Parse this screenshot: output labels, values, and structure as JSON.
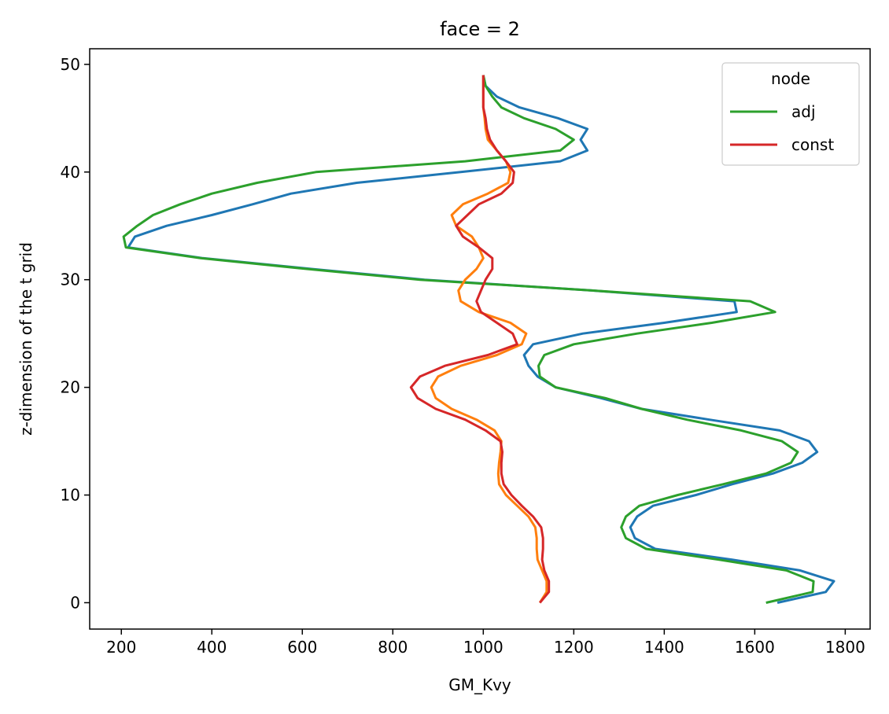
{
  "chart_data": {
    "type": "line",
    "title": "face = 2",
    "xlabel": "GM_Kvy",
    "ylabel": "z-dimension of the t grid",
    "xlim": [
      130,
      1855
    ],
    "ylim": [
      -2.45,
      51.45
    ],
    "xticks": [
      200,
      400,
      600,
      800,
      1000,
      1200,
      1400,
      1600,
      1800
    ],
    "yticks": [
      0,
      10,
      20,
      30,
      40,
      50
    ],
    "grid": false,
    "legend": {
      "title": "node",
      "placement": "top-right",
      "entries": [
        {
          "label": "adj",
          "color": "#2ca02c"
        },
        {
          "label": "const",
          "color": "#d62728"
        }
      ]
    },
    "series": [
      {
        "color": "#1f77b4",
        "y": [
          0,
          1,
          2,
          3,
          4,
          5,
          6,
          7,
          8,
          9,
          10,
          11,
          12,
          13,
          14,
          15,
          16,
          17,
          18,
          19,
          20,
          21,
          22,
          23,
          24,
          25,
          26,
          27,
          28,
          29,
          30,
          31,
          32,
          33,
          34,
          35,
          36,
          37,
          38,
          39,
          40,
          41,
          42,
          43,
          44,
          45,
          46,
          47,
          48,
          49
        ],
        "x": [
          1650,
          1757,
          1775,
          1700,
          1550,
          1380,
          1335,
          1325,
          1340,
          1375,
          1470,
          1550,
          1640,
          1705,
          1738,
          1720,
          1655,
          1500,
          1350,
          1260,
          1160,
          1120,
          1100,
          1090,
          1110,
          1220,
          1400,
          1560,
          1555,
          1240,
          870,
          620,
          380,
          215,
          230,
          300,
          400,
          490,
          575,
          720,
          950,
          1170,
          1230,
          1215,
          1230,
          1165,
          1080,
          1030,
          1005,
          1000
        ]
      },
      {
        "color": "#2ca02c",
        "y": [
          0,
          1,
          2,
          3,
          4,
          5,
          6,
          7,
          8,
          9,
          10,
          11,
          12,
          13,
          14,
          15,
          16,
          17,
          18,
          19,
          20,
          21,
          22,
          23,
          24,
          25,
          26,
          27,
          28,
          29,
          30,
          31,
          32,
          33,
          34,
          35,
          36,
          37,
          38,
          39,
          40,
          41,
          42,
          43,
          44,
          45,
          46,
          47,
          48,
          49
        ],
        "x": [
          1625,
          1728,
          1730,
          1670,
          1520,
          1360,
          1315,
          1305,
          1315,
          1345,
          1430,
          1530,
          1625,
          1680,
          1695,
          1660,
          1570,
          1450,
          1350,
          1270,
          1160,
          1125,
          1122,
          1135,
          1200,
          1340,
          1505,
          1645,
          1590,
          1240,
          860,
          610,
          375,
          210,
          205,
          235,
          270,
          330,
          400,
          500,
          630,
          960,
          1170,
          1200,
          1160,
          1090,
          1040,
          1020,
          1005,
          1000
        ]
      },
      {
        "color": "#ff7f0e",
        "y": [
          0,
          1,
          2,
          3,
          4,
          5,
          6,
          7,
          8,
          9,
          10,
          11,
          12,
          13,
          14,
          15,
          16,
          17,
          18,
          19,
          20,
          21,
          22,
          23,
          24,
          25,
          26,
          27,
          28,
          29,
          30,
          31,
          32,
          33,
          34,
          35,
          36,
          37,
          38,
          39,
          40,
          41,
          42,
          43,
          44,
          45,
          46,
          47,
          48,
          49
        ],
        "x": [
          1125,
          1140,
          1140,
          1130,
          1120,
          1118,
          1118,
          1115,
          1100,
          1075,
          1050,
          1035,
          1033,
          1035,
          1038,
          1040,
          1025,
          985,
          930,
          895,
          885,
          900,
          950,
          1030,
          1085,
          1095,
          1060,
          990,
          950,
          945,
          960,
          985,
          1000,
          990,
          975,
          940,
          930,
          955,
          1010,
          1055,
          1060,
          1050,
          1030,
          1010,
          1005,
          1003,
          1000,
          1000,
          1000,
          1000
        ]
      },
      {
        "color": "#d62728",
        "y": [
          0,
          1,
          2,
          3,
          4,
          5,
          6,
          7,
          8,
          9,
          10,
          11,
          12,
          13,
          14,
          15,
          16,
          17,
          18,
          19,
          20,
          21,
          22,
          23,
          24,
          25,
          26,
          27,
          28,
          29,
          30,
          31,
          32,
          33,
          34,
          35,
          36,
          37,
          38,
          39,
          40,
          41,
          42,
          43,
          44,
          45,
          46,
          47,
          48,
          49
        ],
        "x": [
          1125,
          1145,
          1145,
          1135,
          1130,
          1132,
          1132,
          1128,
          1110,
          1085,
          1062,
          1045,
          1040,
          1040,
          1042,
          1038,
          1005,
          960,
          895,
          855,
          840,
          860,
          915,
          1010,
          1075,
          1065,
          1030,
          995,
          985,
          995,
          1005,
          1020,
          1020,
          990,
          955,
          940,
          965,
          990,
          1040,
          1065,
          1068,
          1050,
          1030,
          1015,
          1008,
          1005,
          1000,
          1000,
          1000,
          1000
        ]
      }
    ]
  }
}
